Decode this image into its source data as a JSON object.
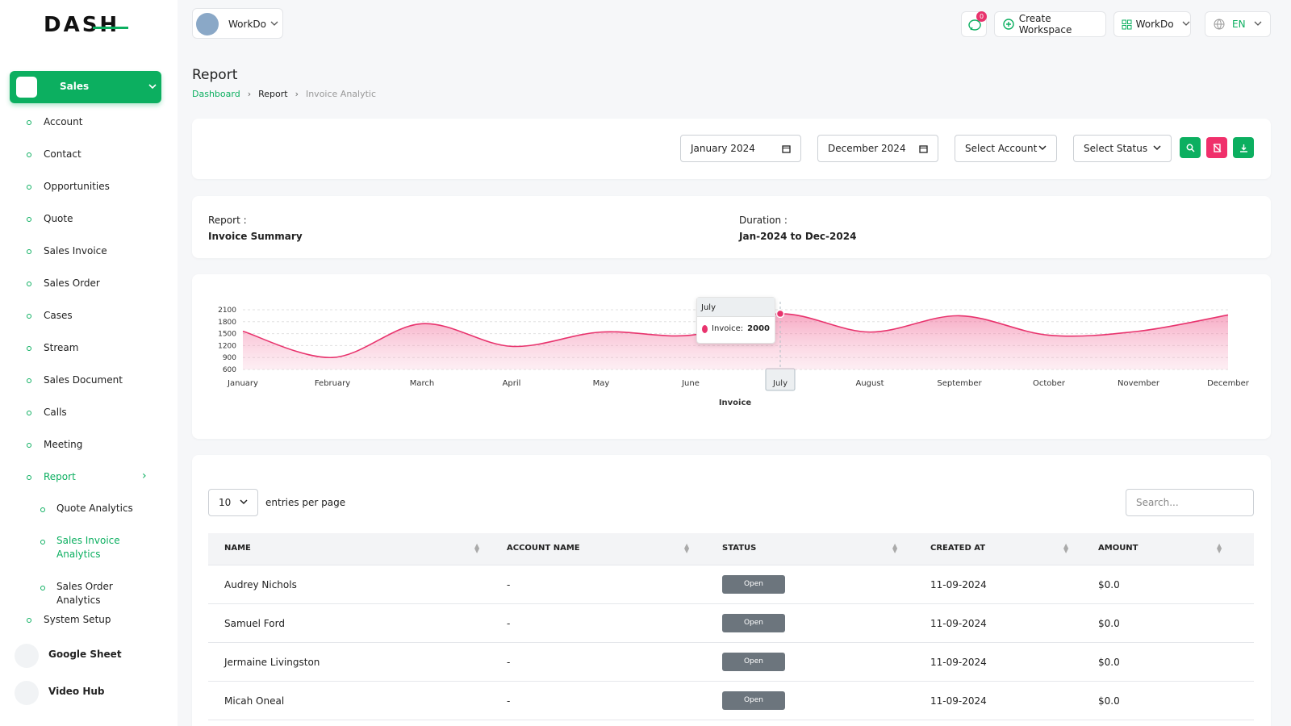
{
  "header": {
    "brand": "DASH",
    "workspace": "WorkDo",
    "notifications": "0",
    "create_workspace": "Create Workspace",
    "user": "WorkDo",
    "language": "EN"
  },
  "sidebar": {
    "active": "Sales",
    "items": [
      "Account",
      "Contact",
      "Opportunities",
      "Quote",
      "Sales Invoice",
      "Sales Order",
      "Cases",
      "Stream",
      "Sales Document",
      "Calls",
      "Meeting"
    ],
    "report": "Report",
    "report_items": [
      "Quote Analytics",
      "Sales Invoice Analytics",
      "Sales Order Analytics"
    ],
    "system_setup": "System Setup",
    "google_sheet": "Google Sheet",
    "video_hub": "Video Hub"
  },
  "page": {
    "title": "Report",
    "breadcrumb": [
      "Dashboard",
      "Report",
      "Invoice Analytic"
    ]
  },
  "filters": {
    "start": "January 2024",
    "end": "December 2024",
    "account": "Select Account",
    "status": "Select Status"
  },
  "summary": {
    "report_label": "Report :",
    "report_value": "Invoice Summary",
    "duration_label": "Duration :",
    "duration_value": "Jan-2024 to Dec-2024"
  },
  "chart_data": {
    "type": "area",
    "categories": [
      "January",
      "February",
      "March",
      "April",
      "May",
      "June",
      "July",
      "August",
      "September",
      "October",
      "November",
      "December"
    ],
    "series": [
      {
        "name": "Invoice",
        "color": "#e8336d",
        "values": [
          1560,
          900,
          1750,
          1180,
          1540,
          1460,
          2000,
          1540,
          1950,
          1460,
          1560,
          1970
        ]
      }
    ],
    "ylim": [
      600,
      2100
    ],
    "yticks": [
      600,
      900,
      1200,
      1500,
      1800,
      2100
    ],
    "grid": true,
    "x_label": "Invoice",
    "tooltip": {
      "index": 6,
      "label": "Invoice:"
    }
  },
  "table": {
    "page_size": "10",
    "page_size_label": "entries per page",
    "search_placeholder": "Search...",
    "columns": [
      "NAME",
      "ACCOUNT NAME",
      "STATUS",
      "CREATED AT",
      "AMOUNT"
    ],
    "rows": [
      [
        "Audrey Nichols",
        "-",
        "Open",
        "11-09-2024",
        "$0.0"
      ],
      [
        "Samuel Ford",
        "-",
        "Open",
        "11-09-2024",
        "$0.0"
      ],
      [
        "Jermaine Livingston",
        "-",
        "Open",
        "11-09-2024",
        "$0.0"
      ],
      [
        "Micah Oneal",
        "-",
        "Open",
        "11-09-2024",
        "$0.0"
      ]
    ]
  }
}
